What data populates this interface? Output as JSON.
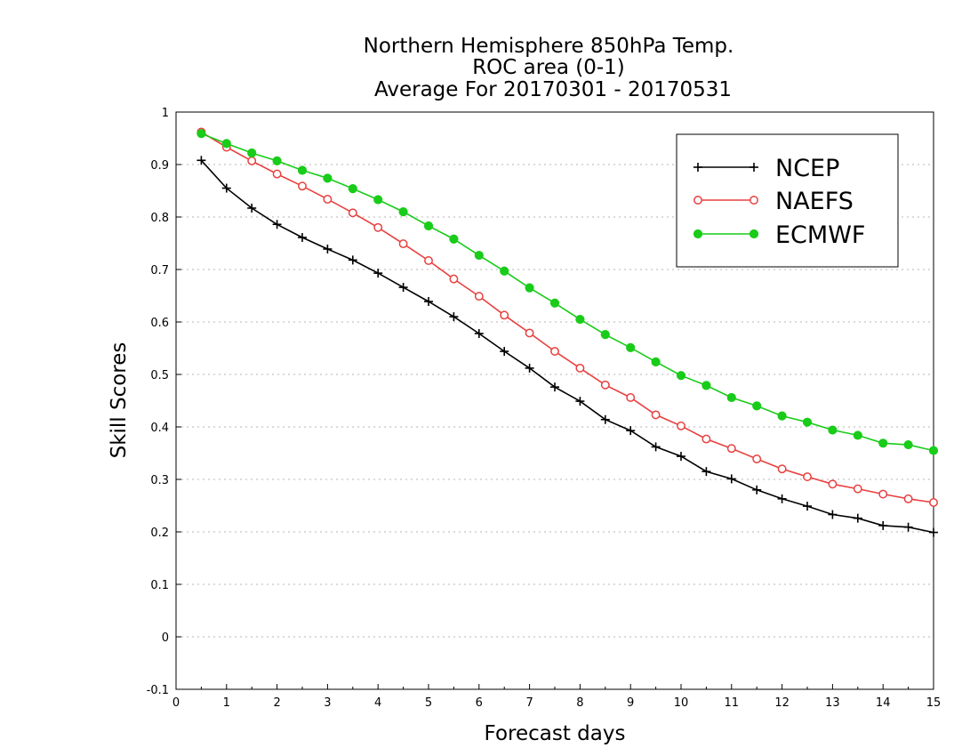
{
  "chart_data": {
    "type": "line",
    "title": [
      "Northern Hemisphere 850hPa Temp.",
      "ROC area (0-1)",
      "Average For 20170301 - 20170531"
    ],
    "xlabel": "Forecast days",
    "ylabel": "Skill Scores",
    "xlim": [
      0,
      15
    ],
    "ylim": [
      -0.1,
      1
    ],
    "xticks": [
      0,
      1,
      2,
      3,
      4,
      5,
      6,
      7,
      8,
      9,
      10,
      11,
      12,
      13,
      14,
      15
    ],
    "xtick_labels": [
      "0",
      "1",
      "2",
      "3",
      "4",
      "5",
      "6",
      "7",
      "8",
      "9",
      "10",
      "11",
      "12",
      "13",
      "14",
      "15"
    ],
    "yticks": [
      -0.1,
      0,
      0.1,
      0.2,
      0.3,
      0.4,
      0.5,
      0.6,
      0.7,
      0.8,
      0.9,
      1
    ],
    "ytick_labels": [
      "-0.1",
      "0",
      "0.1",
      "0.2",
      "0.3",
      "0.4",
      "0.5",
      "0.6",
      "0.7",
      "0.8",
      "0.9",
      "1"
    ],
    "grid": "horizontal-dotted",
    "legend_position": "top-right",
    "x": [
      0.5,
      1,
      1.5,
      2,
      2.5,
      3,
      3.5,
      4,
      4.5,
      5,
      5.5,
      6,
      6.5,
      7,
      7.5,
      8,
      8.5,
      9,
      9.5,
      10,
      10.5,
      11,
      11.5,
      12,
      12.5,
      13,
      13.5,
      14,
      14.5,
      15
    ],
    "series": [
      {
        "name": "NCEP",
        "color": "#000000",
        "marker": "plus",
        "values": [
          0.908,
          0.855,
          0.817,
          0.786,
          0.761,
          0.739,
          0.718,
          0.693,
          0.666,
          0.639,
          0.61,
          0.578,
          0.544,
          0.512,
          0.476,
          0.449,
          0.414,
          0.393,
          0.362,
          0.344,
          0.315,
          0.301,
          0.28,
          0.263,
          0.249,
          0.233,
          0.226,
          0.212,
          0.209,
          0.199
        ]
      },
      {
        "name": "NAEFS",
        "color": "#e8403f",
        "marker": "open-circle",
        "values": [
          0.962,
          0.933,
          0.907,
          0.882,
          0.859,
          0.834,
          0.808,
          0.78,
          0.749,
          0.717,
          0.682,
          0.649,
          0.613,
          0.579,
          0.544,
          0.512,
          0.48,
          0.456,
          0.423,
          0.402,
          0.377,
          0.359,
          0.339,
          0.32,
          0.305,
          0.291,
          0.282,
          0.272,
          0.263,
          0.256
        ]
      },
      {
        "name": "ECMWF",
        "color": "#19cc19",
        "marker": "filled-circle",
        "values": [
          0.959,
          0.94,
          0.922,
          0.907,
          0.889,
          0.874,
          0.854,
          0.833,
          0.81,
          0.783,
          0.758,
          0.727,
          0.697,
          0.665,
          0.636,
          0.605,
          0.576,
          0.551,
          0.524,
          0.498,
          0.479,
          0.456,
          0.44,
          0.421,
          0.409,
          0.394,
          0.384,
          0.369,
          0.366,
          0.355
        ]
      }
    ]
  }
}
